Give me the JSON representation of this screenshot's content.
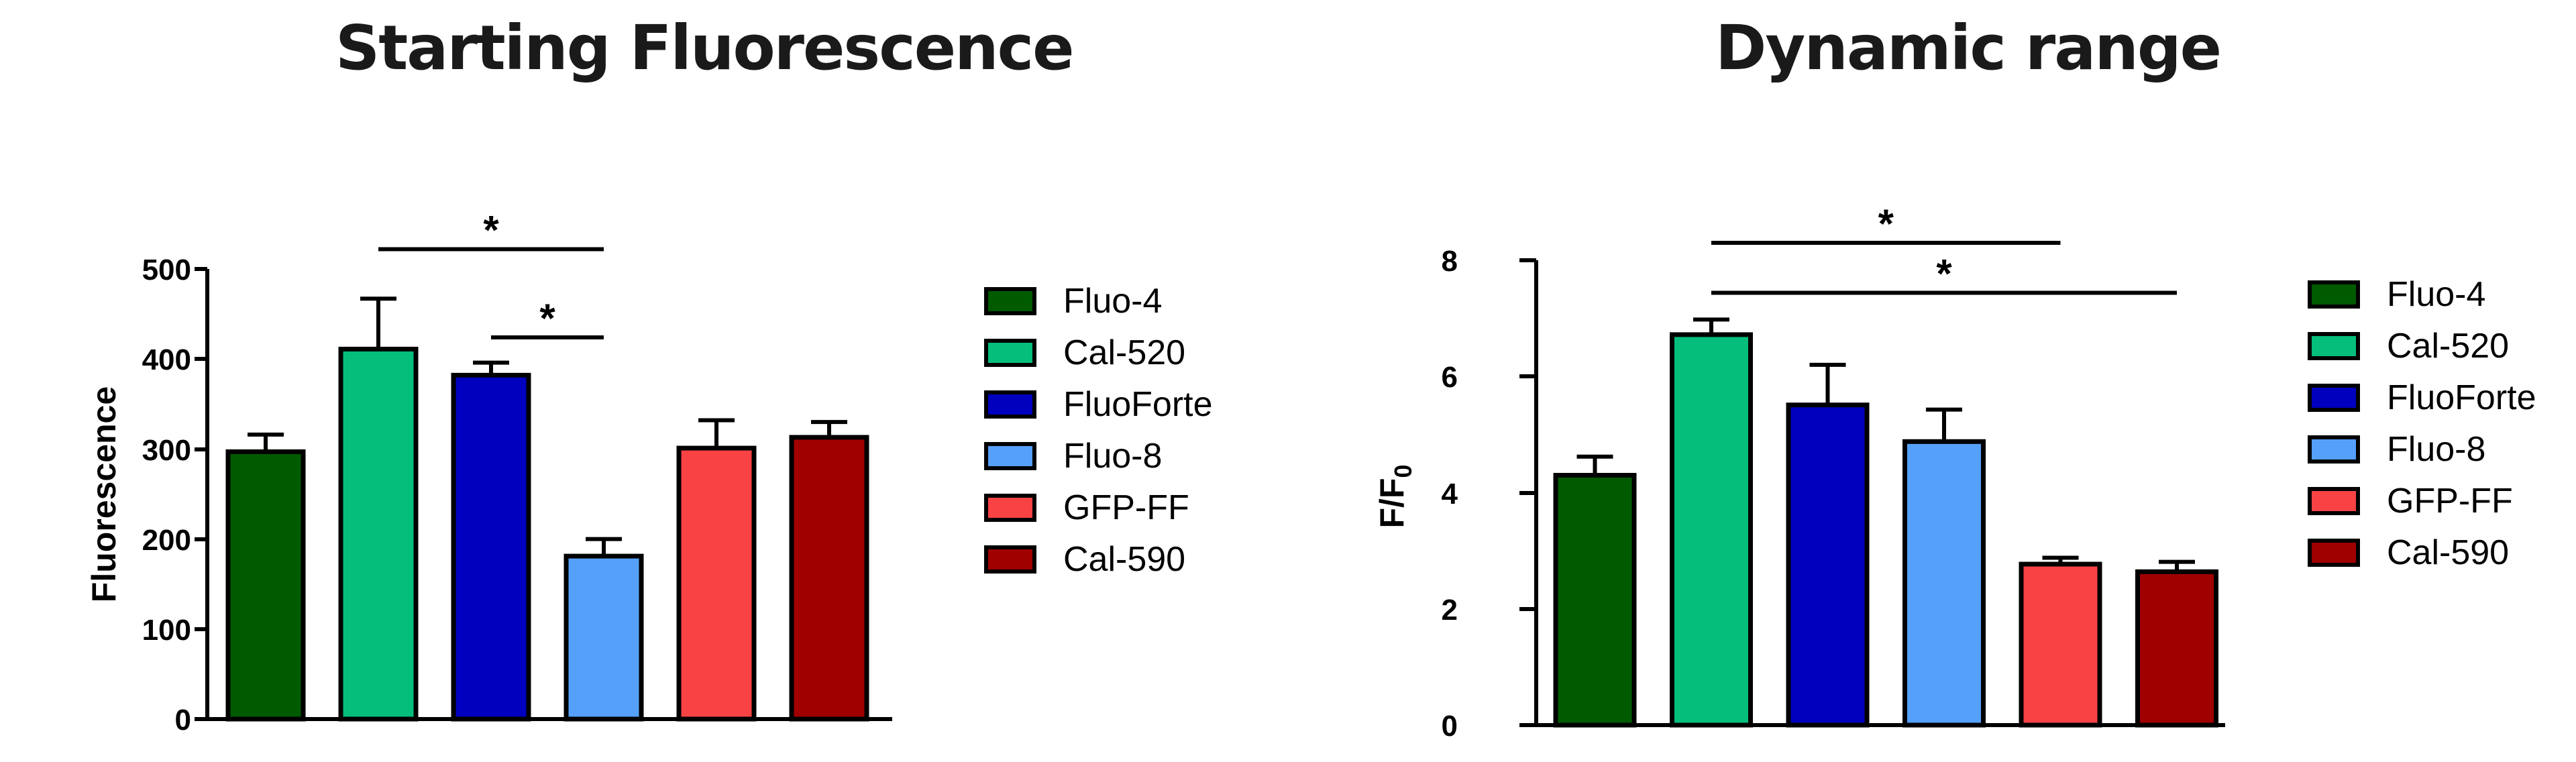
{
  "chart_data": [
    {
      "type": "bar",
      "title": "Starting Fluorescence",
      "xlabel": "",
      "ylabel": "Fluorescence",
      "ylim": [
        0,
        500
      ],
      "yticks": [
        0,
        100,
        200,
        300,
        400,
        500
      ],
      "grid": false,
      "legend_position": "right",
      "categories": [
        "Fluo-4",
        "Cal-520",
        "FluoForte",
        "Fluo-8",
        "GFP-FF",
        "Cal-590"
      ],
      "colors": [
        "#005a00",
        "#06be7c",
        "#0000be",
        "#55a0fa",
        "#f84244",
        "#a00000"
      ],
      "values": [
        297,
        411,
        382,
        181,
        301,
        313
      ],
      "error_upper": [
        316,
        467,
        396,
        200,
        332,
        330
      ],
      "significance": [
        {
          "from": "Cal-520",
          "to": "Fluo-8",
          "label": "*",
          "level": 522
        },
        {
          "from": "FluoForte",
          "to": "Fluo-8",
          "label": "*",
          "level": 424
        }
      ]
    },
    {
      "type": "bar",
      "title": "Dynamic range",
      "xlabel": "",
      "ylabel": "F/F0",
      "ylim": [
        0,
        8
      ],
      "yticks": [
        0,
        2,
        4,
        6,
        8
      ],
      "grid": false,
      "legend_position": "right",
      "categories": [
        "Fluo-4",
        "Cal-520",
        "FluoForte",
        "Fluo-8",
        "GFP-FF",
        "Cal-590"
      ],
      "colors": [
        "#005a00",
        "#06be7c",
        "#0000be",
        "#55a0fa",
        "#f84244",
        "#a00000"
      ],
      "values": [
        4.3,
        6.72,
        5.51,
        4.88,
        2.77,
        2.64
      ],
      "error_upper": [
        4.62,
        6.98,
        6.2,
        5.43,
        2.88,
        2.81
      ],
      "significance": [
        {
          "from": "Cal-520",
          "to": "GFP-FF",
          "label": "*",
          "level": 8.3
        },
        {
          "from": "Cal-520",
          "to": "Cal-590",
          "label": "*",
          "level": 7.44
        }
      ]
    }
  ],
  "left": {
    "title": "Starting Fluorescence",
    "ylabel": "Fluorescence",
    "ticks": [
      "0",
      "100",
      "200",
      "300",
      "400",
      "500"
    ],
    "legend": [
      "Fluo-4",
      "Cal-520",
      "FluoForte",
      "Fluo-8",
      "GFP-FF",
      "Cal-590"
    ]
  },
  "right": {
    "title": "Dynamic range",
    "ylabel_main": "F/F",
    "ylabel_sub": "0",
    "ticks": [
      "0",
      "2",
      "4",
      "6",
      "8"
    ],
    "legend": [
      "Fluo-4",
      "Cal-520",
      "FluoForte",
      "Fluo-8",
      "GFP-FF",
      "Cal-590"
    ]
  },
  "star": "*"
}
